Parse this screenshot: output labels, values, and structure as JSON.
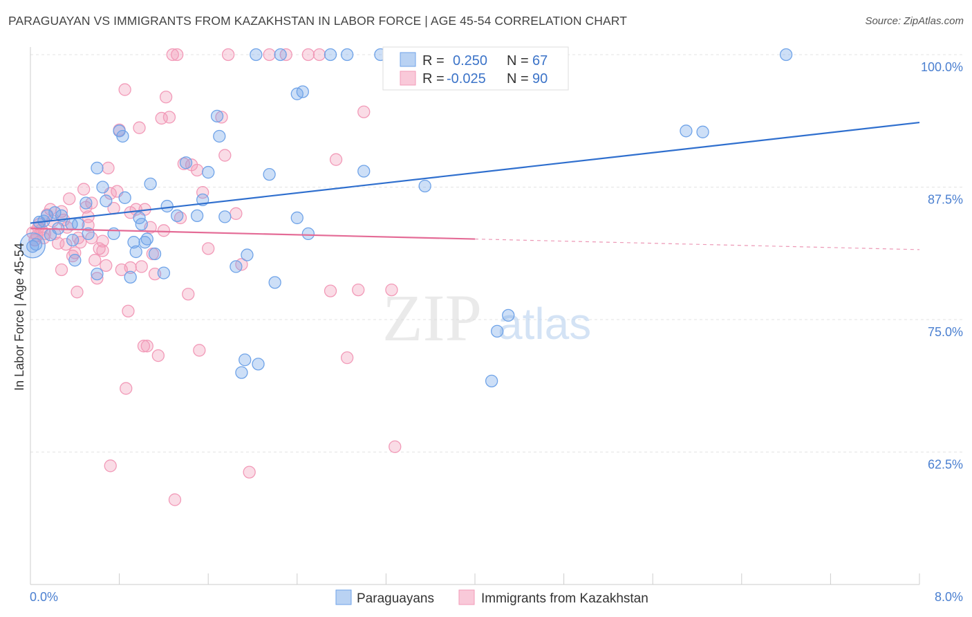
{
  "title": "PARAGUAYAN VS IMMIGRANTS FROM KAZAKHSTAN IN LABOR FORCE | AGE 45-54 CORRELATION CHART",
  "source": "Source: ZipAtlas.com",
  "watermark": {
    "zip": "ZIP",
    "atlas": "atlas"
  },
  "colors": {
    "blue": "#6fa3e8",
    "blue_line": "#2f6fce",
    "pink": "#f29ab8",
    "pink_line": "#e46b96",
    "tick": "#4a7fd0"
  },
  "legend": {
    "r_label": "R =",
    "n_label": "N =",
    "blue": {
      "r": "0.250",
      "n": "67"
    },
    "pink": {
      "r": "-0.025",
      "n": "90"
    }
  },
  "bottom_legend": [
    "Paraguayans",
    "Immigrants from Kazakhstan"
  ],
  "chart_data": {
    "type": "scatter",
    "title": "PARAGUAYAN VS IMMIGRANTS FROM KAZAKHSTAN IN LABOR FORCE | AGE 45-54 CORRELATION CHART",
    "xlabel": "",
    "ylabel": "In Labor Force | Age 45-54",
    "xlim": [
      0,
      8
    ],
    "ylim": [
      50,
      100
    ],
    "x_ticks": [
      "0.0%",
      "8.0%"
    ],
    "y_ticks": [
      {
        "value": 100,
        "label": "100.0%"
      },
      {
        "value": 87.5,
        "label": "87.5%"
      },
      {
        "value": 75,
        "label": "75.0%"
      },
      {
        "value": 62.5,
        "label": "62.5%"
      }
    ],
    "grid": true,
    "legend_position": "top-center",
    "series": [
      {
        "name": "Paraguayans",
        "r": 0.25,
        "n": 67,
        "trend": {
          "x": [
            0,
            8
          ],
          "y": [
            84.1,
            93.6
          ],
          "dashed_from": null
        },
        "points": [
          [
            0.02,
            81.9
          ],
          [
            0.05,
            82.1
          ],
          [
            0.08,
            84.2
          ],
          [
            0.12,
            84.3
          ],
          [
            0.15,
            84.8
          ],
          [
            0.18,
            83.0
          ],
          [
            0.22,
            85.1
          ],
          [
            0.25,
            83.6
          ],
          [
            0.28,
            84.8
          ],
          [
            0.37,
            84.0
          ],
          [
            0.43,
            84.0
          ],
          [
            0.38,
            82.5
          ],
          [
            0.5,
            86.0
          ],
          [
            0.52,
            83.1
          ],
          [
            0.6,
            89.3
          ],
          [
            0.65,
            87.5
          ],
          [
            0.68,
            86.2
          ],
          [
            0.75,
            83.1
          ],
          [
            0.8,
            92.8
          ],
          [
            0.83,
            92.3
          ],
          [
            0.85,
            86.5
          ],
          [
            0.9,
            79.0
          ],
          [
            0.93,
            82.3
          ],
          [
            0.98,
            84.6
          ],
          [
            1.0,
            84.0
          ],
          [
            1.03,
            82.3
          ],
          [
            1.05,
            82.6
          ],
          [
            1.08,
            87.8
          ],
          [
            1.12,
            81.2
          ],
          [
            1.2,
            79.4
          ],
          [
            1.23,
            85.7
          ],
          [
            1.32,
            84.8
          ],
          [
            1.4,
            89.8
          ],
          [
            1.5,
            84.8
          ],
          [
            1.55,
            86.3
          ],
          [
            1.6,
            88.9
          ],
          [
            1.7,
            92.3
          ],
          [
            1.68,
            94.2
          ],
          [
            1.75,
            84.7
          ],
          [
            1.85,
            80.0
          ],
          [
            1.95,
            81.1
          ],
          [
            1.9,
            70.0
          ],
          [
            1.93,
            71.2
          ],
          [
            2.05,
            70.8
          ],
          [
            2.03,
            100.0
          ],
          [
            2.15,
            88.7
          ],
          [
            2.2,
            78.5
          ],
          [
            2.25,
            100.0
          ],
          [
            2.4,
            84.6
          ],
          [
            2.4,
            96.3
          ],
          [
            2.45,
            96.5
          ],
          [
            2.5,
            83.1
          ],
          [
            2.7,
            100.0
          ],
          [
            2.85,
            100.0
          ],
          [
            3.0,
            89.0
          ],
          [
            3.15,
            100.0
          ],
          [
            3.55,
            87.6
          ],
          [
            3.9,
            100.0
          ],
          [
            4.2,
            73.9
          ],
          [
            4.3,
            75.4
          ],
          [
            4.15,
            69.2
          ],
          [
            5.9,
            92.8
          ],
          [
            6.05,
            92.7
          ],
          [
            6.8,
            100.0
          ],
          [
            0.6,
            79.3
          ],
          [
            0.4,
            80.6
          ],
          [
            0.95,
            81.4
          ]
        ]
      },
      {
        "name": "Immigrants from Kazakhstan",
        "r": -0.025,
        "n": 90,
        "trend": {
          "x": [
            0,
            8
          ],
          "y": [
            83.6,
            81.6
          ],
          "dashed_from": 4.0
        },
        "points": [
          [
            0.02,
            83.2
          ],
          [
            0.04,
            82.5
          ],
          [
            0.06,
            82.9
          ],
          [
            0.08,
            84.0
          ],
          [
            0.1,
            83.5
          ],
          [
            0.13,
            83.1
          ],
          [
            0.15,
            84.9
          ],
          [
            0.18,
            85.4
          ],
          [
            0.2,
            84.3
          ],
          [
            0.22,
            83.1
          ],
          [
            0.25,
            82.2
          ],
          [
            0.28,
            85.2
          ],
          [
            0.3,
            84.4
          ],
          [
            0.32,
            82.1
          ],
          [
            0.35,
            86.4
          ],
          [
            0.38,
            81.0
          ],
          [
            0.4,
            81.3
          ],
          [
            0.43,
            82.7
          ],
          [
            0.45,
            82.3
          ],
          [
            0.48,
            87.3
          ],
          [
            0.5,
            85.6
          ],
          [
            0.52,
            84.7
          ],
          [
            0.55,
            86.0
          ],
          [
            0.58,
            80.6
          ],
          [
            0.6,
            78.9
          ],
          [
            0.62,
            81.7
          ],
          [
            0.65,
            81.5
          ],
          [
            0.68,
            80.1
          ],
          [
            0.7,
            89.3
          ],
          [
            0.72,
            86.9
          ],
          [
            0.75,
            85.5
          ],
          [
            0.78,
            87.1
          ],
          [
            0.8,
            92.9
          ],
          [
            0.82,
            79.7
          ],
          [
            0.85,
            96.7
          ],
          [
            0.88,
            75.8
          ],
          [
            0.9,
            79.9
          ],
          [
            0.95,
            85.4
          ],
          [
            0.98,
            93.1
          ],
          [
            1.0,
            80.0
          ],
          [
            1.02,
            72.5
          ],
          [
            1.05,
            72.5
          ],
          [
            1.08,
            83.7
          ],
          [
            1.1,
            81.2
          ],
          [
            1.12,
            79.3
          ],
          [
            1.15,
            71.6
          ],
          [
            1.18,
            94.0
          ],
          [
            1.2,
            83.4
          ],
          [
            1.22,
            96.0
          ],
          [
            1.25,
            94.1
          ],
          [
            1.28,
            100.0
          ],
          [
            1.32,
            100.0
          ],
          [
            1.35,
            84.6
          ],
          [
            1.38,
            89.7
          ],
          [
            1.42,
            77.4
          ],
          [
            1.45,
            89.6
          ],
          [
            1.5,
            89.1
          ],
          [
            1.52,
            72.1
          ],
          [
            1.55,
            87.0
          ],
          [
            1.6,
            81.7
          ],
          [
            1.72,
            94.1
          ],
          [
            1.75,
            90.5
          ],
          [
            1.78,
            100.0
          ],
          [
            1.85,
            85.0
          ],
          [
            1.9,
            80.2
          ],
          [
            1.97,
            60.6
          ],
          [
            2.15,
            100.0
          ],
          [
            2.3,
            100.0
          ],
          [
            2.5,
            100.0
          ],
          [
            2.6,
            100.0
          ],
          [
            2.7,
            77.7
          ],
          [
            2.75,
            90.1
          ],
          [
            2.85,
            71.4
          ],
          [
            2.95,
            77.8
          ],
          [
            3.0,
            94.6
          ],
          [
            3.25,
            77.8
          ],
          [
            3.28,
            63.0
          ],
          [
            0.72,
            61.2
          ],
          [
            0.86,
            68.5
          ],
          [
            1.3,
            58.0
          ],
          [
            0.42,
            77.6
          ],
          [
            0.28,
            79.7
          ],
          [
            0.55,
            82.7
          ],
          [
            0.65,
            82.4
          ],
          [
            0.9,
            85.1
          ],
          [
            1.03,
            85.4
          ],
          [
            0.33,
            83.7
          ],
          [
            0.12,
            82.7
          ],
          [
            0.07,
            83.7
          ],
          [
            0.52,
            83.9
          ]
        ]
      }
    ]
  }
}
